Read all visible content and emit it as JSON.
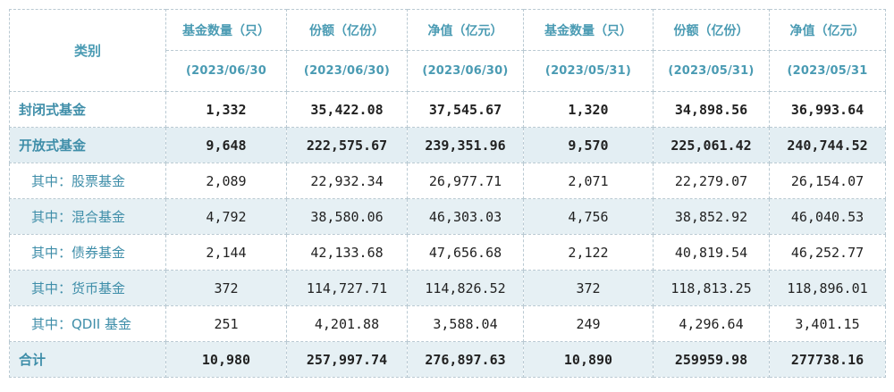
{
  "header": {
    "category": "类别",
    "columns": [
      "基金数量（只）",
      "份额（亿份）",
      "净值（亿元）",
      "基金数量（只）",
      "份额（亿份）",
      "净值（亿元）"
    ],
    "dates": [
      "(2023/06/30",
      "(2023/06/30)",
      "(2023/06/30)",
      "(2023/05/31)",
      "(2023/05/31)",
      "(2023/05/31"
    ]
  },
  "rows": [
    {
      "label": "封闭式基金",
      "values": [
        "1,332",
        "35,422.08",
        "37,545.67",
        "1,320",
        "34,898.56",
        "36,993.64"
      ]
    },
    {
      "label": "开放式基金",
      "values": [
        "9,648",
        "222,575.67",
        "239,351.96",
        "9,570",
        "225,061.42",
        "240,744.52"
      ]
    },
    {
      "label": "其中：股票基金",
      "values": [
        "2,089",
        "22,932.34",
        "26,977.71",
        "2,071",
        "22,279.07",
        "26,154.07"
      ]
    },
    {
      "label": "其中：混合基金",
      "values": [
        "4,792",
        "38,580.06",
        "46,303.03",
        "4,756",
        "38,852.92",
        "46,040.53"
      ]
    },
    {
      "label": "其中：债券基金",
      "values": [
        "2,144",
        "42,133.68",
        "47,656.68",
        "2,122",
        "40,819.54",
        "46,252.77"
      ]
    },
    {
      "label": "其中：货币基金",
      "values": [
        "372",
        "114,727.71",
        "114,826.52",
        "372",
        "118,813.25",
        "118,896.01"
      ]
    },
    {
      "label": "其中：QDII 基金",
      "values": [
        "251",
        "4,201.88",
        "3,588.04",
        "249",
        "4,296.64",
        "3,401.15"
      ]
    },
    {
      "label": "合计",
      "values": [
        "10,980",
        "257,997.74",
        "276,897.63",
        "10,890",
        "259959.98",
        "277738.16"
      ]
    }
  ]
}
